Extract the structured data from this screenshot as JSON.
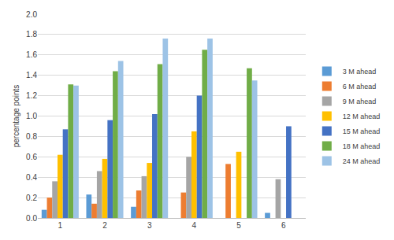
{
  "chart_data": {
    "type": "bar",
    "ylabel": "percentage points",
    "categories": [
      "1",
      "2",
      "3",
      "4",
      "5",
      "6"
    ],
    "series": [
      {
        "name": "3 M ahead",
        "color": "#5B9BD5",
        "values": [
          0.08,
          0.23,
          0.11,
          null,
          null,
          0.05
        ]
      },
      {
        "name": "6 M ahead",
        "color": "#ED7D31",
        "values": [
          0.2,
          0.14,
          0.27,
          0.25,
          0.53,
          null
        ]
      },
      {
        "name": "9 M ahead",
        "color": "#A5A5A5",
        "values": [
          0.36,
          0.46,
          0.41,
          0.6,
          null,
          0.38
        ]
      },
      {
        "name": "12 M ahead",
        "color": "#FFC000",
        "values": [
          0.62,
          0.58,
          0.54,
          0.85,
          0.65,
          null
        ]
      },
      {
        "name": "15 M ahead",
        "color": "#4472C4",
        "values": [
          0.87,
          0.96,
          1.02,
          1.2,
          null,
          0.9
        ]
      },
      {
        "name": "18 M ahead",
        "color": "#70AD47",
        "values": [
          1.31,
          1.44,
          1.51,
          1.65,
          1.47,
          null
        ]
      },
      {
        "name": "24 M ahead",
        "color": "#9DC3E6",
        "values": [
          1.3,
          1.54,
          1.76,
          1.76,
          1.35,
          null
        ]
      }
    ],
    "ylim": [
      0,
      2
    ],
    "yticks": [
      {
        "value": 0,
        "label": "0.0"
      },
      0.2,
      0.4,
      0.6,
      0.8,
      {
        "value": 1,
        "label": "1.0"
      },
      1.2,
      1.4,
      1.6,
      1.8,
      {
        "value": 2,
        "label": "2.0"
      }
    ],
    "grid": true,
    "legend": "right"
  }
}
